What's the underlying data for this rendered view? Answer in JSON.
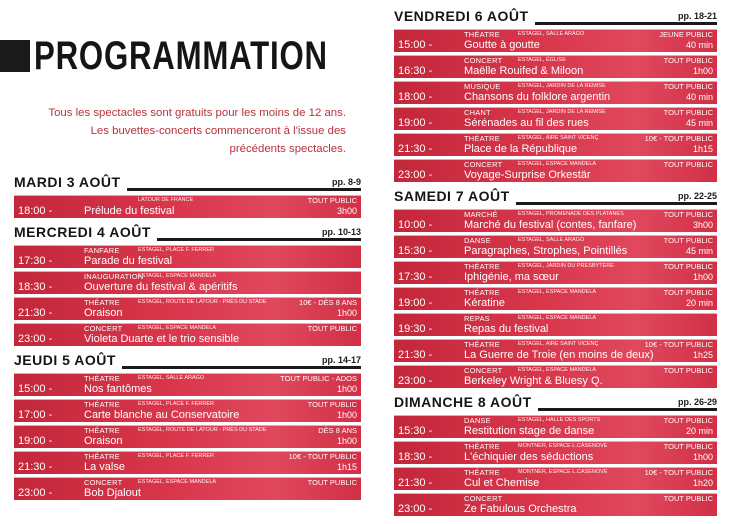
{
  "header": {
    "title": "PROGRAMMATION",
    "intro": [
      "Tous les spectacles sont gratuits pour les moins de 12 ans.",
      "Les buvettes-concerts commenceront à l'issue des",
      "précédents spectacles."
    ]
  },
  "columns": [
    {
      "top": 176,
      "days": [
        {
          "name": "MARDI 3 AOÛT",
          "pages": "pp. 8-9",
          "events": [
            {
              "time": "18:00",
              "title": "Prélude du festival",
              "category": "",
              "venue": "LATOUR DE FRANCE",
              "audience": "TOUT PUBLIC",
              "duration": "3h00"
            }
          ]
        },
        {
          "name": "MERCREDI 4 AOÛT",
          "pages": "pp. 10-13",
          "events": [
            {
              "time": "17:30",
              "title": "Parade du festival",
              "category": "FANFARE",
              "venue": "ESTAGEL, PLACE F. FERRER",
              "audience": "",
              "duration": ""
            },
            {
              "time": "18:30",
              "title": "Ouverture du festival & apéritifs",
              "category": "INAUGURATION",
              "venue": "ESTAGEL, ESPACE MANDELA",
              "audience": "",
              "duration": ""
            },
            {
              "time": "21:30",
              "title": "Oraison",
              "category": "THÉATRE",
              "venue": "ESTAGEL, ROUTE DE LATOUR - PRÈS DU STADE",
              "audience": "10€ - DÈS 8 ANS",
              "duration": "1h00"
            },
            {
              "time": "23:00",
              "title": "Violeta Duarte et le trio sensible",
              "category": "CONCERT",
              "venue": "ESTAGEL, ESPACE MANDELA",
              "audience": "TOUT PUBLIC",
              "duration": ""
            }
          ]
        },
        {
          "name": "JEUDI 5 AOÛT",
          "pages": "pp. 14-17",
          "events": [
            {
              "time": "15:00",
              "title": "Nos fantômes",
              "category": "THÉATRE",
              "venue": "ESTAGEL, SALLE ARAGO",
              "audience": "TOUT PUBLIC - ADOS",
              "duration": "1h00"
            },
            {
              "time": "17:00",
              "title": "Carte blanche au Conservatoire",
              "category": "THÉATRE",
              "venue": "ESTAGEL, PLACE F. FERRER",
              "audience": "TOUT PUBLIC",
              "duration": "1h00"
            },
            {
              "time": "19:00",
              "title": "Oraison",
              "category": "THÉATRE",
              "venue": "ESTAGEL, ROUTE DE LATOUR - PRÈS DU STADE",
              "audience": "DÈS 8 ANS",
              "duration": "1h00"
            },
            {
              "time": "21:30",
              "title": "La valse",
              "category": "THÉATRE",
              "venue": "ESTAGEL, PLACE F. FERRER",
              "audience": "10€ - TOUT PUBLIC",
              "duration": "1h15"
            },
            {
              "time": "23:00",
              "title": "Bob Djalout",
              "category": "CONCERT",
              "venue": "ESTAGEL, ESPACE MANDELA",
              "audience": "TOUT PUBLIC",
              "duration": ""
            }
          ]
        }
      ]
    },
    {
      "top": 10,
      "days": [
        {
          "name": "VENDREDI 6 AOÛT",
          "pages": "pp. 18-21",
          "events": [
            {
              "time": "15:00",
              "title": "Goutte à goutte",
              "category": "THÉATRE",
              "venue": "ESTAGEL, SALLE ARAGO",
              "audience": "JEUNE PUBLIC",
              "duration": "40 min"
            },
            {
              "time": "16:30",
              "title": "Maëlle Rouifed & Miloon",
              "category": "CONCERT",
              "venue": "ESTAGEL, ÉGLISE",
              "audience": "TOUT PUBLIC",
              "duration": "1h00"
            },
            {
              "time": "18:00",
              "title": "Chansons du folklore argentin",
              "category": "MUSIQUE",
              "venue": "ESTAGEL, JARDIN DE LA REMISE",
              "audience": "TOUT PUBLIC",
              "duration": "40 min"
            },
            {
              "time": "19:00",
              "title": "Sérénades au fil des rues",
              "category": "CHANT",
              "venue": "ESTAGEL, JARDIN DE LA REMISE",
              "audience": "TOUT PUBLIC",
              "duration": "45 min"
            },
            {
              "time": "21:30",
              "title": "Place de la République",
              "category": "THÉATRE",
              "venue": "ESTAGEL, AIRE SAINT VICENÇ",
              "audience": "10€ - TOUT PUBLIC",
              "duration": "1h15"
            },
            {
              "time": "23:00",
              "title": "Voyage-Surprise Orkestär",
              "category": "CONCERT",
              "venue": "ESTAGEL, ESPACE MANDELA",
              "audience": "TOUT PUBLIC",
              "duration": ""
            }
          ]
        },
        {
          "name": "SAMEDI 7 AOÛT",
          "pages": "pp. 22-25",
          "events": [
            {
              "time": "10:00",
              "title": "Marché du festival (contes, fanfare)",
              "category": "MARCHÉ",
              "venue": "ESTAGEL, PROMENADE DES PLATANES",
              "audience": "TOUT PUBLIC",
              "duration": "3h00"
            },
            {
              "time": "15:30",
              "title": "Paragraphes, Strophes, Pointillés",
              "category": "DANSE",
              "venue": "ESTAGEL, SALLE ARAGO",
              "audience": "TOUT PUBLIC",
              "duration": "45 min"
            },
            {
              "time": "17:30",
              "title": "Iphigénie, ma sœur",
              "category": "THÉATRE",
              "venue": "ESTAGEL, JARDIN DU PRESBYTÈRE",
              "audience": "TOUT PUBLIC",
              "duration": "1h00"
            },
            {
              "time": "19:00",
              "title": "Kératine",
              "category": "THÉATRE",
              "venue": "ESTAGEL, ESPACE MANDELA",
              "audience": "TOUT PUBLIC",
              "duration": "20 min"
            },
            {
              "time": "19:30",
              "title": "Repas du festival",
              "category": "REPAS",
              "venue": "ESTAGEL, ESPACE MANDELA",
              "audience": "",
              "duration": ""
            },
            {
              "time": "21:30",
              "title": "La Guerre de Troie (en moins de deux)",
              "category": "THÉATRE",
              "venue": "ESTAGEL, AIRE SAINT VICENÇ",
              "audience": "10€ - TOUT PUBLIC",
              "duration": "1h25"
            },
            {
              "time": "23:00",
              "title": "Berkeley Wright & Bluesy Q.",
              "category": "CONCERT",
              "venue": "ESTAGEL, ESPACE MANDELA",
              "audience": "TOUT PUBLIC",
              "duration": ""
            }
          ]
        },
        {
          "name": "DIMANCHE 8 AOÛT",
          "pages": "pp. 26-29",
          "events": [
            {
              "time": "15:30",
              "title": "Restitution stage de danse",
              "category": "DANSE",
              "venue": "ESTAGEL, HALLE DES SPORTS",
              "audience": "TOUT PUBLIC",
              "duration": "20 min"
            },
            {
              "time": "18:30",
              "title": "L'échiquier des séductions",
              "category": "THÉATRE",
              "venue": "MONTNER, ESPACE L.CASENOVE",
              "audience": "TOUT PUBLIC",
              "duration": "1h00"
            },
            {
              "time": "21:30",
              "title": "Cul et Chemise",
              "category": "THÉATRE",
              "venue": "MONTNER, ESPACE L.CASENOVE",
              "audience": "10€ - TOUT PUBLIC",
              "duration": "1h20"
            },
            {
              "time": "23:00",
              "title": "Ze Fabulous Orchestra",
              "category": "CONCERT",
              "venue": "",
              "audience": "TOUT PUBLIC",
              "duration": ""
            }
          ]
        }
      ]
    }
  ]
}
